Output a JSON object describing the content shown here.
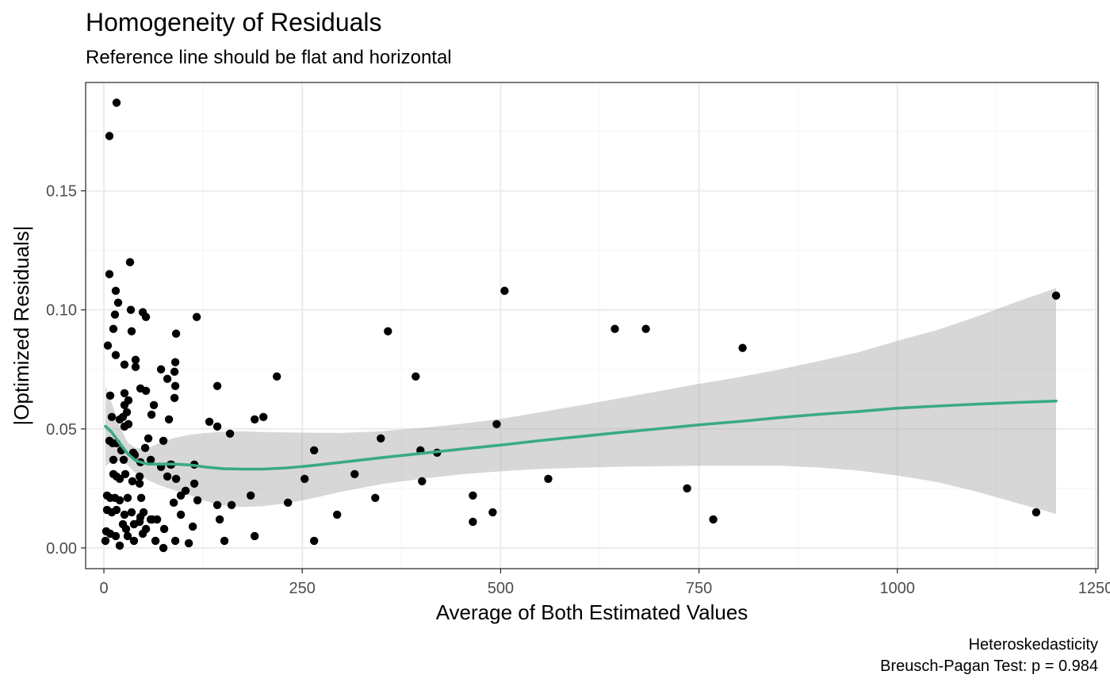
{
  "chart_data": {
    "type": "scatter",
    "title": "Homogeneity of Residuals",
    "subtitle": "Reference line should be flat and horizontal",
    "xlabel": "Average of Both Estimated Values",
    "ylabel": "|Optimized Residuals|",
    "caption": [
      "Heteroskedasticity",
      "Breusch-Pagan Test: p = 0.984"
    ],
    "xlim": [
      -23,
      1253
    ],
    "ylim": [
      -0.0087,
      0.1955
    ],
    "x_ticks": [
      0,
      250,
      500,
      750,
      1000,
      1250
    ],
    "x_tick_labels": [
      "0",
      "250",
      "500",
      "750",
      "1000",
      "1250"
    ],
    "y_ticks": [
      0.0,
      0.05,
      0.1,
      0.15
    ],
    "y_tick_labels": [
      "0.00",
      "0.05",
      "0.10",
      "0.15"
    ],
    "grid": true,
    "colors": {
      "points": "#000000",
      "smooth_line": "#3aaa85",
      "confidence_band": "#d6d6d6",
      "grid_major": "#ebebeb",
      "grid_minor": "#f5f5f5",
      "panel_border": "#333333"
    },
    "points": [
      [
        16,
        0.187
      ],
      [
        7,
        0.173
      ],
      [
        33,
        0.12
      ],
      [
        7,
        0.115
      ],
      [
        15,
        0.108
      ],
      [
        18,
        0.103
      ],
      [
        14,
        0.098
      ],
      [
        12,
        0.092
      ],
      [
        34,
        0.1
      ],
      [
        49,
        0.099
      ],
      [
        53,
        0.097
      ],
      [
        35,
        0.091
      ],
      [
        5,
        0.085
      ],
      [
        15,
        0.081
      ],
      [
        40,
        0.079
      ],
      [
        26,
        0.077
      ],
      [
        40,
        0.076
      ],
      [
        72,
        0.075
      ],
      [
        91,
        0.09
      ],
      [
        117,
        0.097
      ],
      [
        90,
        0.078
      ],
      [
        89,
        0.074
      ],
      [
        80,
        0.071
      ],
      [
        90,
        0.068
      ],
      [
        89,
        0.063
      ],
      [
        46,
        0.067
      ],
      [
        53,
        0.066
      ],
      [
        26,
        0.065
      ],
      [
        8,
        0.064
      ],
      [
        31,
        0.062
      ],
      [
        26,
        0.06
      ],
      [
        63,
        0.06
      ],
      [
        29,
        0.057
      ],
      [
        60,
        0.056
      ],
      [
        24,
        0.055
      ],
      [
        20,
        0.054
      ],
      [
        10,
        0.055
      ],
      [
        31,
        0.052
      ],
      [
        26,
        0.051
      ],
      [
        82,
        0.054
      ],
      [
        133,
        0.053
      ],
      [
        143,
        0.051
      ],
      [
        143,
        0.068
      ],
      [
        218,
        0.072
      ],
      [
        190,
        0.054
      ],
      [
        201,
        0.055
      ],
      [
        159,
        0.048
      ],
      [
        7,
        0.045
      ],
      [
        11,
        0.044
      ],
      [
        16,
        0.044
      ],
      [
        56,
        0.046
      ],
      [
        75,
        0.045
      ],
      [
        52,
        0.042
      ],
      [
        22,
        0.041
      ],
      [
        37,
        0.04
      ],
      [
        12,
        0.037
      ],
      [
        25,
        0.037
      ],
      [
        39,
        0.039
      ],
      [
        59,
        0.037
      ],
      [
        46,
        0.036
      ],
      [
        72,
        0.034
      ],
      [
        85,
        0.035
      ],
      [
        84,
        0.035
      ],
      [
        114,
        0.035
      ],
      [
        12,
        0.031
      ],
      [
        16,
        0.03
      ],
      [
        20,
        0.029
      ],
      [
        27,
        0.031
      ],
      [
        36,
        0.028
      ],
      [
        45,
        0.027
      ],
      [
        45,
        0.03
      ],
      [
        80,
        0.03
      ],
      [
        91,
        0.029
      ],
      [
        114,
        0.027
      ],
      [
        103,
        0.024
      ],
      [
        97,
        0.022
      ],
      [
        118,
        0.02
      ],
      [
        88,
        0.019
      ],
      [
        143,
        0.018
      ],
      [
        161,
        0.018
      ],
      [
        185,
        0.022
      ],
      [
        232,
        0.019
      ],
      [
        253,
        0.029
      ],
      [
        265,
        0.041
      ],
      [
        316,
        0.031
      ],
      [
        349,
        0.046
      ],
      [
        342,
        0.021
      ],
      [
        393,
        0.072
      ],
      [
        399,
        0.041
      ],
      [
        401,
        0.028
      ],
      [
        420,
        0.04
      ],
      [
        358,
        0.091
      ],
      [
        505,
        0.108
      ],
      [
        495,
        0.052
      ],
      [
        465,
        0.022
      ],
      [
        465,
        0.011
      ],
      [
        490,
        0.015
      ],
      [
        560,
        0.029
      ],
      [
        644,
        0.092
      ],
      [
        683,
        0.092
      ],
      [
        805,
        0.084
      ],
      [
        735,
        0.025
      ],
      [
        768,
        0.012
      ],
      [
        1175,
        0.015
      ],
      [
        1200,
        0.106
      ],
      [
        4,
        0.022
      ],
      [
        8,
        0.021
      ],
      [
        14,
        0.021
      ],
      [
        20,
        0.02
      ],
      [
        30,
        0.021
      ],
      [
        47,
        0.021
      ],
      [
        4,
        0.016
      ],
      [
        10,
        0.015
      ],
      [
        16,
        0.016
      ],
      [
        26,
        0.014
      ],
      [
        35,
        0.015
      ],
      [
        50,
        0.015
      ],
      [
        46,
        0.013
      ],
      [
        59,
        0.012
      ],
      [
        67,
        0.012
      ],
      [
        97,
        0.014
      ],
      [
        112,
        0.009
      ],
      [
        146,
        0.012
      ],
      [
        3,
        0.007
      ],
      [
        8,
        0.006
      ],
      [
        15,
        0.005
      ],
      [
        24,
        0.01
      ],
      [
        28,
        0.008
      ],
      [
        38,
        0.01
      ],
      [
        45,
        0.011
      ],
      [
        53,
        0.008
      ],
      [
        61,
        0.012
      ],
      [
        76,
        0.008
      ],
      [
        2,
        0.003
      ],
      [
        20,
        0.001
      ],
      [
        30,
        0.005
      ],
      [
        38,
        0.003
      ],
      [
        49,
        0.006
      ],
      [
        65,
        0.003
      ],
      [
        75,
        0.0
      ],
      [
        90,
        0.003
      ],
      [
        107,
        0.002
      ],
      [
        152,
        0.003
      ],
      [
        190,
        0.005
      ],
      [
        265,
        0.003
      ],
      [
        294,
        0.014
      ]
    ],
    "smooth": {
      "x": [
        2,
        10,
        20,
        30,
        40,
        55,
        70,
        90,
        110,
        130,
        150,
        175,
        200,
        230,
        260,
        300,
        350,
        400,
        450,
        500,
        550,
        600,
        650,
        700,
        750,
        800,
        850,
        900,
        950,
        1000,
        1050,
        1100,
        1150,
        1200
      ],
      "y": [
        0.0511,
        0.0486,
        0.0439,
        0.0396,
        0.0367,
        0.0352,
        0.0352,
        0.0352,
        0.0348,
        0.0339,
        0.0333,
        0.0331,
        0.0331,
        0.0336,
        0.0345,
        0.036,
        0.0379,
        0.0397,
        0.0415,
        0.0432,
        0.0451,
        0.0468,
        0.0485,
        0.0501,
        0.0517,
        0.0531,
        0.0547,
        0.0561,
        0.0573,
        0.0587,
        0.0596,
        0.0604,
        0.0611,
        0.0617
      ],
      "ci_low": [
        0.0343,
        0.0364,
        0.0366,
        0.0349,
        0.0314,
        0.0286,
        0.0263,
        0.0241,
        0.0219,
        0.0195,
        0.0178,
        0.0172,
        0.0175,
        0.0187,
        0.0206,
        0.0237,
        0.0268,
        0.029,
        0.0309,
        0.0322,
        0.0332,
        0.0337,
        0.0341,
        0.0343,
        0.0345,
        0.0345,
        0.0346,
        0.0338,
        0.0325,
        0.0304,
        0.0277,
        0.0236,
        0.0189,
        0.0143
      ],
      "ci_high": [
        0.0679,
        0.0608,
        0.0512,
        0.0443,
        0.042,
        0.0418,
        0.0441,
        0.0463,
        0.0477,
        0.0483,
        0.0488,
        0.049,
        0.0487,
        0.0485,
        0.0484,
        0.0483,
        0.049,
        0.0504,
        0.0521,
        0.0542,
        0.057,
        0.0599,
        0.0629,
        0.0659,
        0.0689,
        0.0717,
        0.0748,
        0.0784,
        0.0821,
        0.087,
        0.0915,
        0.0972,
        0.1033,
        0.1091
      ]
    }
  }
}
